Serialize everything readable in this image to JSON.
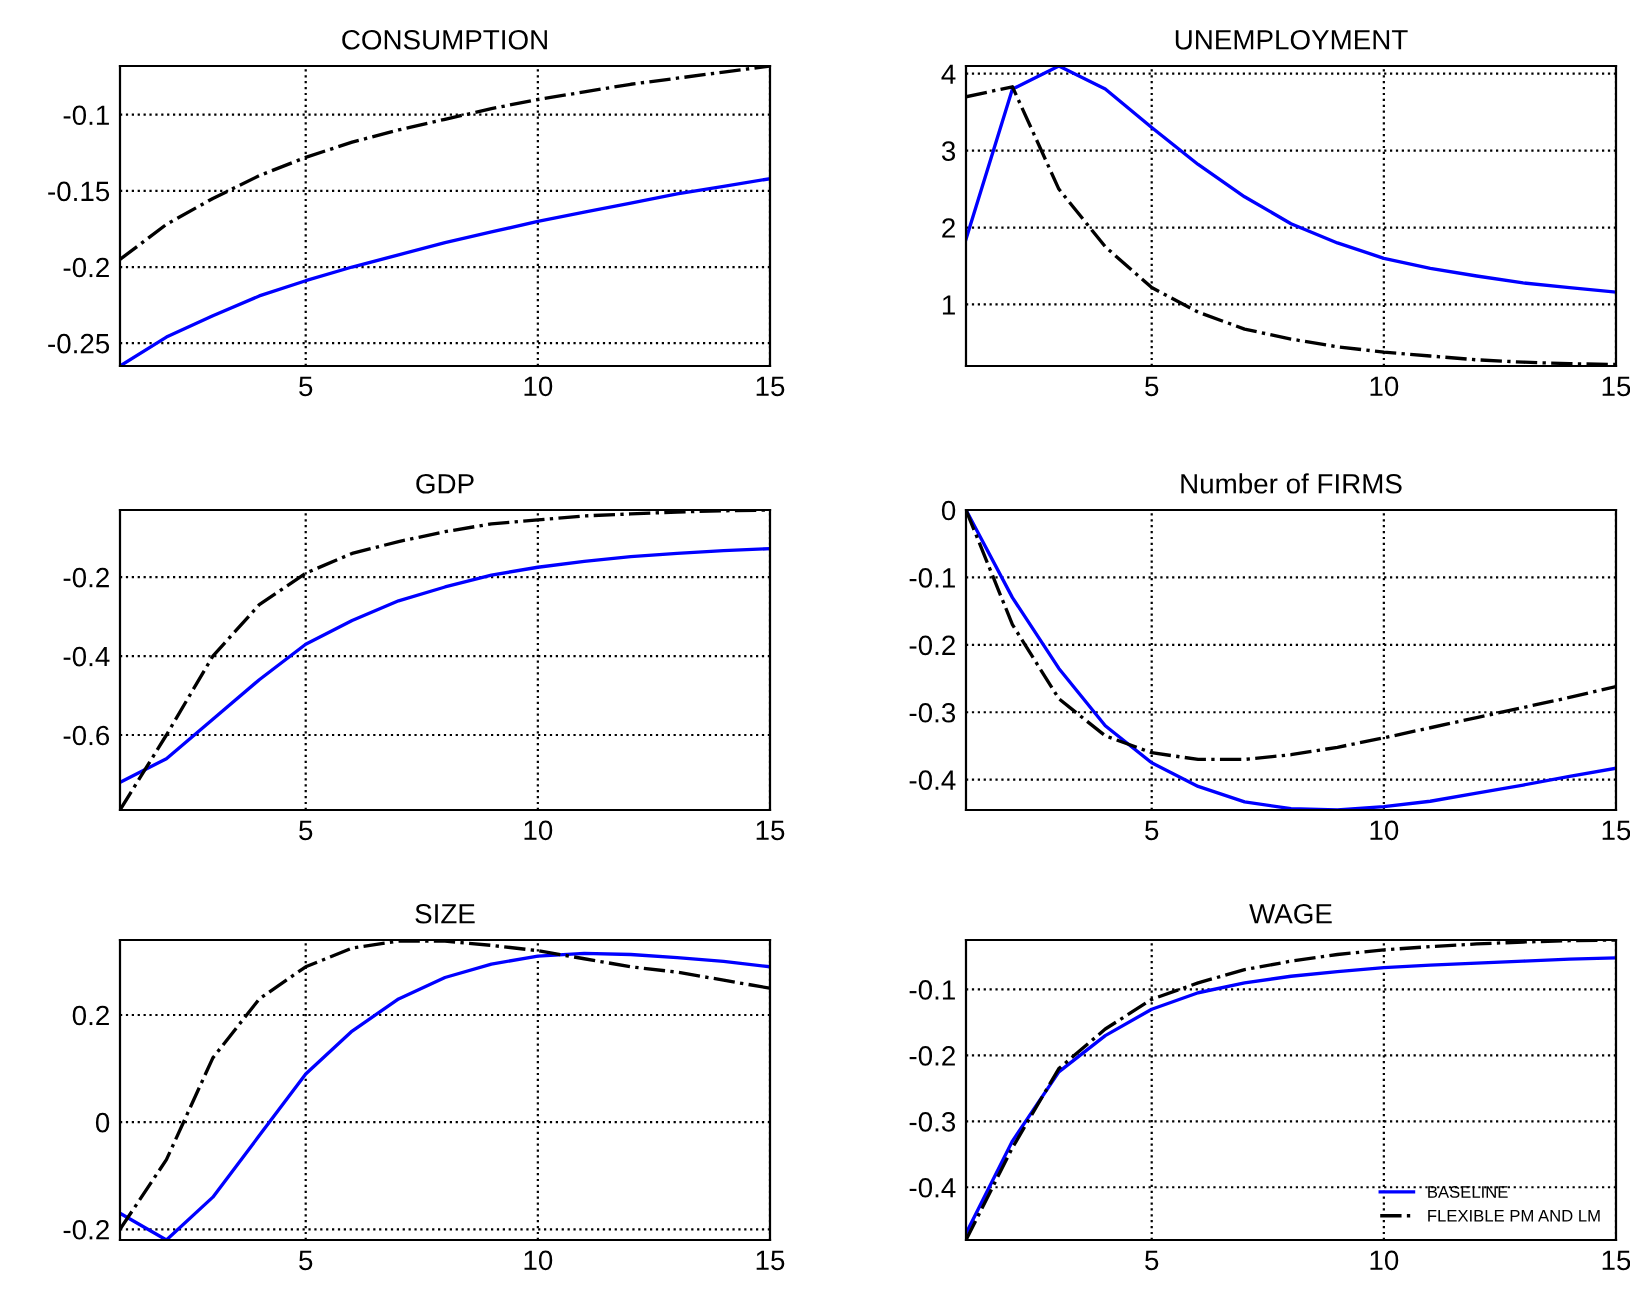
{
  "chart_data": [
    {
      "type": "line",
      "title": "CONSUMPTION",
      "x": [
        1,
        2,
        3,
        4,
        5,
        6,
        7,
        8,
        9,
        10,
        11,
        12,
        13,
        14,
        15
      ],
      "xlim": [
        1,
        15
      ],
      "xticks": [
        5,
        10,
        15
      ],
      "ylim": [
        -0.265,
        -0.068
      ],
      "yticks": [
        -0.25,
        -0.2,
        -0.15,
        -0.1
      ],
      "grid": true,
      "legend": false,
      "series": [
        {
          "color": "#0000ff",
          "line_style": "solid",
          "values": [
            -0.265,
            -0.246,
            -0.232,
            -0.219,
            -0.209,
            -0.2,
            -0.192,
            -0.184,
            -0.177,
            -0.17,
            -0.164,
            -0.158,
            -0.152,
            -0.147,
            -0.142
          ]
        },
        {
          "color": "#000000",
          "line_style": "dashdot",
          "values": [
            -0.195,
            -0.172,
            -0.155,
            -0.14,
            -0.128,
            -0.118,
            -0.11,
            -0.103,
            -0.096,
            -0.09,
            -0.085,
            -0.08,
            -0.076,
            -0.072,
            -0.068
          ]
        }
      ]
    },
    {
      "type": "line",
      "title": "UNEMPLOYMENT",
      "x": [
        1,
        2,
        3,
        4,
        5,
        6,
        7,
        8,
        9,
        10,
        11,
        12,
        13,
        14,
        15
      ],
      "xlim": [
        1,
        15
      ],
      "xticks": [
        5,
        10,
        15
      ],
      "ylim": [
        0.2,
        4.1
      ],
      "yticks": [
        1,
        2,
        3,
        4
      ],
      "grid": true,
      "legend": false,
      "series": [
        {
          "color": "#0000ff",
          "line_style": "solid",
          "values": [
            1.85,
            3.8,
            4.1,
            3.8,
            3.3,
            2.82,
            2.4,
            2.05,
            1.8,
            1.6,
            1.47,
            1.37,
            1.28,
            1.22,
            1.16
          ]
        },
        {
          "color": "#000000",
          "line_style": "dashdot",
          "values": [
            3.7,
            3.83,
            2.5,
            1.75,
            1.22,
            0.9,
            0.68,
            0.55,
            0.45,
            0.38,
            0.33,
            0.28,
            0.25,
            0.23,
            0.22
          ]
        }
      ]
    },
    {
      "type": "line",
      "title": "GDP",
      "x": [
        1,
        2,
        3,
        4,
        5,
        6,
        7,
        8,
        9,
        10,
        11,
        12,
        13,
        14,
        15
      ],
      "xlim": [
        1,
        15
      ],
      "xticks": [
        5,
        10,
        15
      ],
      "ylim": [
        -0.79,
        -0.03
      ],
      "yticks": [
        -0.6,
        -0.4,
        -0.2
      ],
      "grid": true,
      "legend": false,
      "series": [
        {
          "color": "#0000ff",
          "line_style": "solid",
          "values": [
            -0.72,
            -0.66,
            -0.56,
            -0.46,
            -0.37,
            -0.31,
            -0.26,
            -0.225,
            -0.195,
            -0.175,
            -0.16,
            -0.148,
            -0.14,
            -0.133,
            -0.128
          ]
        },
        {
          "color": "#000000",
          "line_style": "dashdot",
          "values": [
            -0.79,
            -0.6,
            -0.4,
            -0.27,
            -0.19,
            -0.14,
            -0.11,
            -0.085,
            -0.065,
            -0.055,
            -0.045,
            -0.04,
            -0.035,
            -0.032,
            -0.03
          ]
        }
      ]
    },
    {
      "type": "line",
      "title": "Number of FIRMS",
      "x": [
        1,
        2,
        3,
        4,
        5,
        6,
        7,
        8,
        9,
        10,
        11,
        12,
        13,
        14,
        15
      ],
      "xlim": [
        1,
        15
      ],
      "xticks": [
        5,
        10,
        15
      ],
      "ylim": [
        -0.445,
        0
      ],
      "yticks": [
        -0.4,
        -0.3,
        -0.2,
        -0.1,
        0
      ],
      "grid": true,
      "legend": false,
      "series": [
        {
          "color": "#0000ff",
          "line_style": "solid",
          "values": [
            0,
            -0.13,
            -0.235,
            -0.32,
            -0.375,
            -0.41,
            -0.433,
            -0.443,
            -0.445,
            -0.44,
            -0.432,
            -0.42,
            -0.408,
            -0.395,
            -0.383
          ]
        },
        {
          "color": "#000000",
          "line_style": "dashdot",
          "values": [
            0,
            -0.17,
            -0.28,
            -0.335,
            -0.36,
            -0.37,
            -0.37,
            -0.363,
            -0.352,
            -0.338,
            -0.323,
            -0.308,
            -0.293,
            -0.278,
            -0.262
          ]
        }
      ]
    },
    {
      "type": "line",
      "title": "SIZE",
      "x": [
        1,
        2,
        3,
        4,
        5,
        6,
        7,
        8,
        9,
        10,
        11,
        12,
        13,
        14,
        15
      ],
      "xlim": [
        1,
        15
      ],
      "xticks": [
        5,
        10,
        15
      ],
      "ylim": [
        -0.22,
        0.34
      ],
      "yticks": [
        -0.2,
        0,
        0.2
      ],
      "grid": true,
      "legend": false,
      "series": [
        {
          "color": "#0000ff",
          "line_style": "solid",
          "values": [
            -0.17,
            -0.22,
            -0.14,
            -0.025,
            0.09,
            0.17,
            0.23,
            0.27,
            0.295,
            0.31,
            0.315,
            0.313,
            0.307,
            0.3,
            0.29
          ]
        },
        {
          "color": "#000000",
          "line_style": "dashdot",
          "values": [
            -0.2,
            -0.07,
            0.12,
            0.23,
            0.29,
            0.325,
            0.338,
            0.338,
            0.33,
            0.32,
            0.305,
            0.29,
            0.28,
            0.265,
            0.25
          ]
        }
      ]
    },
    {
      "type": "line",
      "title": "WAGE",
      "x": [
        1,
        2,
        3,
        4,
        5,
        6,
        7,
        8,
        9,
        10,
        11,
        12,
        13,
        14,
        15
      ],
      "xlim": [
        1,
        15
      ],
      "xticks": [
        5,
        10,
        15
      ],
      "ylim": [
        -0.48,
        -0.025
      ],
      "yticks": [
        -0.4,
        -0.3,
        -0.2,
        -0.1
      ],
      "grid": true,
      "legend": "bottom right",
      "series": [
        {
          "name": "BASELINE",
          "color": "#0000ff",
          "line_style": "solid",
          "values": [
            -0.47,
            -0.33,
            -0.225,
            -0.17,
            -0.13,
            -0.105,
            -0.09,
            -0.08,
            -0.073,
            -0.067,
            -0.063,
            -0.06,
            -0.057,
            -0.054,
            -0.052
          ]
        },
        {
          "name": "FLEXIBLE PM AND LM",
          "color": "#000000",
          "line_style": "dashdot",
          "values": [
            -0.48,
            -0.34,
            -0.22,
            -0.16,
            -0.115,
            -0.09,
            -0.07,
            -0.057,
            -0.047,
            -0.04,
            -0.035,
            -0.031,
            -0.028,
            -0.026,
            -0.025
          ]
        }
      ]
    }
  ]
}
